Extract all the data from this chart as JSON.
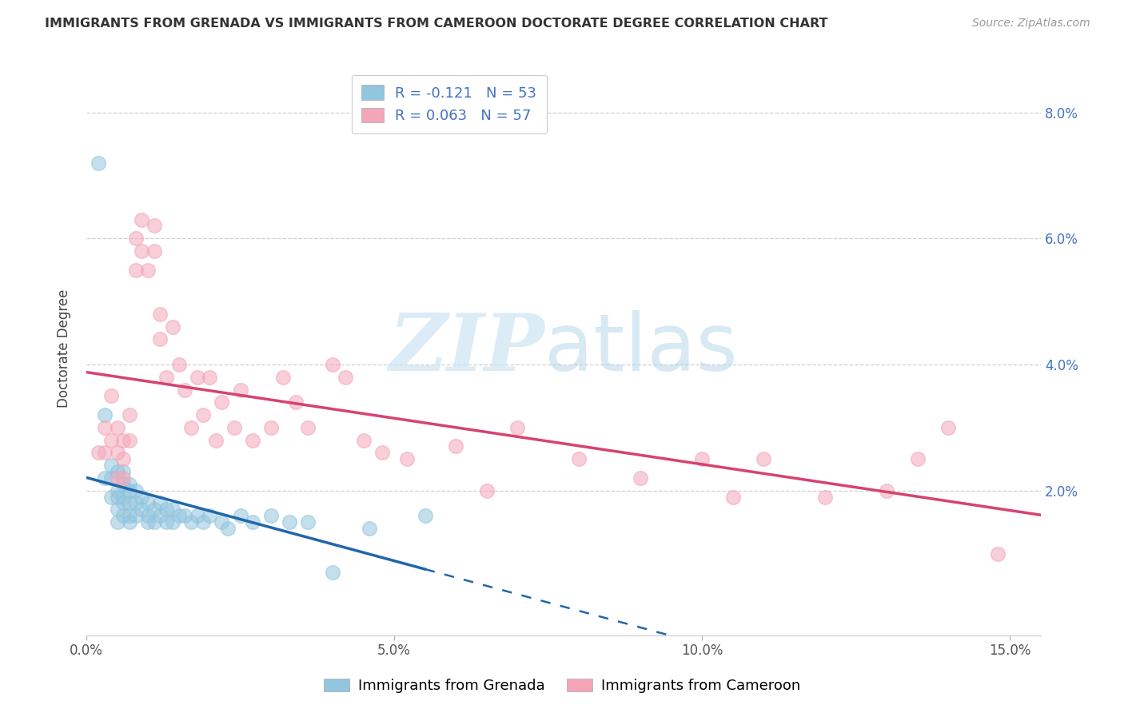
{
  "title": "IMMIGRANTS FROM GRENADA VS IMMIGRANTS FROM CAMEROON DOCTORATE DEGREE CORRELATION CHART",
  "source": "Source: ZipAtlas.com",
  "ylabel": "Doctorate Degree",
  "legend_label1": "Immigrants from Grenada",
  "legend_label2": "Immigrants from Cameroon",
  "R1": -0.121,
  "N1": 53,
  "R2": 0.063,
  "N2": 57,
  "xlim": [
    0.0,
    0.155
  ],
  "ylim": [
    -0.003,
    0.088
  ],
  "xticks": [
    0.0,
    0.05,
    0.1,
    0.15
  ],
  "xticklabels": [
    "0.0%",
    "5.0%",
    "10.0%",
    "15.0%"
  ],
  "yticks": [
    0.0,
    0.02,
    0.04,
    0.06,
    0.08
  ],
  "yticklabels_right": [
    "",
    "2.0%",
    "4.0%",
    "6.0%",
    "8.0%"
  ],
  "color1": "#92c5de",
  "color2": "#f4a6b8",
  "line_color1": "#2166ac",
  "line_color2": "#d6436e",
  "background_color": "#ffffff",
  "watermark_zip": "ZIP",
  "watermark_atlas": "atlas",
  "grenada_x": [
    0.002,
    0.003,
    0.003,
    0.004,
    0.004,
    0.004,
    0.005,
    0.005,
    0.005,
    0.005,
    0.005,
    0.006,
    0.006,
    0.006,
    0.006,
    0.006,
    0.007,
    0.007,
    0.007,
    0.007,
    0.007,
    0.008,
    0.008,
    0.008,
    0.009,
    0.009,
    0.01,
    0.01,
    0.01,
    0.011,
    0.011,
    0.012,
    0.012,
    0.013,
    0.013,
    0.014,
    0.014,
    0.015,
    0.016,
    0.017,
    0.018,
    0.019,
    0.02,
    0.022,
    0.023,
    0.025,
    0.027,
    0.03,
    0.033,
    0.036,
    0.04,
    0.046,
    0.055
  ],
  "grenada_y": [
    0.072,
    0.032,
    0.022,
    0.024,
    0.022,
    0.019,
    0.023,
    0.02,
    0.019,
    0.017,
    0.015,
    0.023,
    0.021,
    0.019,
    0.018,
    0.016,
    0.021,
    0.02,
    0.018,
    0.016,
    0.015,
    0.02,
    0.018,
    0.016,
    0.019,
    0.017,
    0.018,
    0.016,
    0.015,
    0.017,
    0.015,
    0.018,
    0.016,
    0.017,
    0.015,
    0.017,
    0.015,
    0.016,
    0.016,
    0.015,
    0.016,
    0.015,
    0.016,
    0.015,
    0.014,
    0.016,
    0.015,
    0.016,
    0.015,
    0.015,
    0.007,
    0.014,
    0.016
  ],
  "cameroon_x": [
    0.002,
    0.003,
    0.003,
    0.004,
    0.004,
    0.005,
    0.005,
    0.005,
    0.006,
    0.006,
    0.006,
    0.007,
    0.007,
    0.008,
    0.008,
    0.009,
    0.009,
    0.01,
    0.011,
    0.011,
    0.012,
    0.012,
    0.013,
    0.014,
    0.015,
    0.016,
    0.017,
    0.018,
    0.019,
    0.02,
    0.021,
    0.022,
    0.024,
    0.025,
    0.027,
    0.03,
    0.032,
    0.034,
    0.036,
    0.04,
    0.042,
    0.045,
    0.048,
    0.052,
    0.06,
    0.065,
    0.07,
    0.08,
    0.09,
    0.1,
    0.105,
    0.11,
    0.12,
    0.13,
    0.135,
    0.14,
    0.148
  ],
  "cameroon_y": [
    0.026,
    0.03,
    0.026,
    0.035,
    0.028,
    0.03,
    0.026,
    0.022,
    0.028,
    0.025,
    0.022,
    0.032,
    0.028,
    0.06,
    0.055,
    0.063,
    0.058,
    0.055,
    0.062,
    0.058,
    0.048,
    0.044,
    0.038,
    0.046,
    0.04,
    0.036,
    0.03,
    0.038,
    0.032,
    0.038,
    0.028,
    0.034,
    0.03,
    0.036,
    0.028,
    0.03,
    0.038,
    0.034,
    0.03,
    0.04,
    0.038,
    0.028,
    0.026,
    0.025,
    0.027,
    0.02,
    0.03,
    0.025,
    0.022,
    0.025,
    0.019,
    0.025,
    0.019,
    0.02,
    0.025,
    0.03,
    0.01
  ]
}
